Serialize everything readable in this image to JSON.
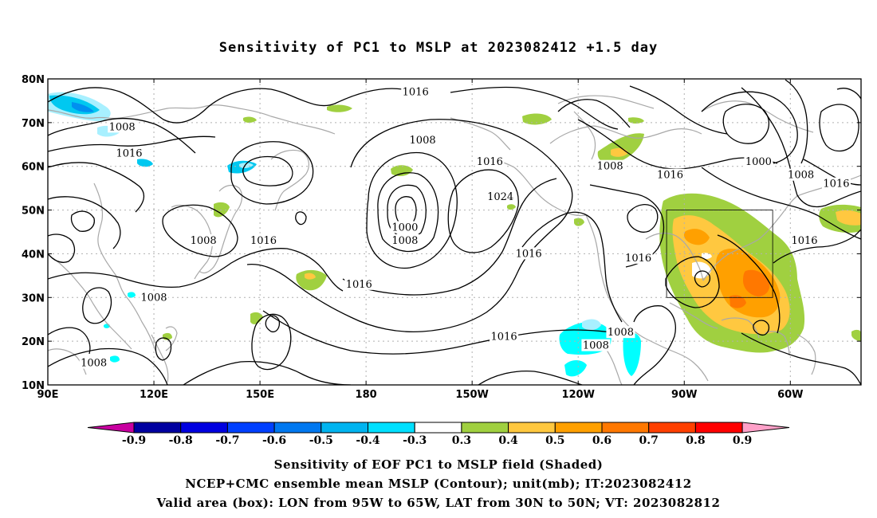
{
  "title": "Sensitivity of PC1 to MSLP at 2023082412 +1.5 day",
  "captions": {
    "line1": "Sensitivity of EOF PC1 to MSLP field (Shaded)",
    "line2": "NCEP+CMC ensemble mean MSLP (Contour); unit(mb); IT:2023082412",
    "line3": "Valid area (box): LON from 95W to 65W, LAT from 30N to 50N; VT: 2023082812"
  },
  "map": {
    "lon_range": [
      90,
      320
    ],
    "lat_range": [
      10,
      80
    ],
    "lat_ticks": [
      {
        "value": 80,
        "label": "80N"
      },
      {
        "value": 70,
        "label": "70N"
      },
      {
        "value": 60,
        "label": "60N"
      },
      {
        "value": 50,
        "label": "50N"
      },
      {
        "value": 40,
        "label": "40N"
      },
      {
        "value": 30,
        "label": "30N"
      },
      {
        "value": 20,
        "label": "20N"
      },
      {
        "value": 10,
        "label": "10N"
      }
    ],
    "lon_ticks": [
      {
        "value": 90,
        "label": "90E"
      },
      {
        "value": 120,
        "label": "120E"
      },
      {
        "value": 150,
        "label": "150E"
      },
      {
        "value": 180,
        "label": "180"
      },
      {
        "value": 210,
        "label": "150W"
      },
      {
        "value": 240,
        "label": "120W"
      },
      {
        "value": 270,
        "label": "90W"
      },
      {
        "value": 300,
        "label": "60W"
      }
    ],
    "valid_box": {
      "lon_west": 265,
      "lon_east": 295,
      "lat_south": 30,
      "lat_north": 50
    },
    "contour_labels": [
      {
        "text": "1016",
        "lon": 194,
        "lat": 77
      },
      {
        "text": "1008",
        "lon": 111,
        "lat": 69
      },
      {
        "text": "1016",
        "lon": 113,
        "lat": 63
      },
      {
        "text": "1008",
        "lon": 196,
        "lat": 66
      },
      {
        "text": "1016",
        "lon": 215,
        "lat": 61
      },
      {
        "text": "1008",
        "lon": 249,
        "lat": 60
      },
      {
        "text": "1016",
        "lon": 266,
        "lat": 58
      },
      {
        "text": "1000",
        "lon": 291,
        "lat": 61
      },
      {
        "text": "1008",
        "lon": 303,
        "lat": 58
      },
      {
        "text": "1016",
        "lon": 313,
        "lat": 56
      },
      {
        "text": "1024",
        "lon": 218,
        "lat": 53
      },
      {
        "text": "1000",
        "lon": 191,
        "lat": 46
      },
      {
        "text": "1008",
        "lon": 191,
        "lat": 43
      },
      {
        "text": "1008",
        "lon": 134,
        "lat": 43
      },
      {
        "text": "1016",
        "lon": 151,
        "lat": 43
      },
      {
        "text": "1016",
        "lon": 226,
        "lat": 40
      },
      {
        "text": "1016",
        "lon": 257,
        "lat": 39
      },
      {
        "text": "1016",
        "lon": 304,
        "lat": 43
      },
      {
        "text": "1016",
        "lon": 178,
        "lat": 33
      },
      {
        "text": "1008",
        "lon": 120,
        "lat": 30
      },
      {
        "text": "1016",
        "lon": 219,
        "lat": 21
      },
      {
        "text": "1008",
        "lon": 252,
        "lat": 22
      },
      {
        "text": "1008",
        "lon": 245,
        "lat": 19
      },
      {
        "text": "1008",
        "lon": 103,
        "lat": 15
      }
    ],
    "shading_colors": {
      "light_cyan": "#a8f0ff",
      "cyan": "#00ffff",
      "sky": "#00c8f0",
      "blue": "#0090f0",
      "green": "#a0d040",
      "yellow": "#ffc840",
      "orange": "#ffa000",
      "dark_orange": "#ff7800"
    }
  },
  "colorbar": {
    "labels": [
      "-0.9",
      "-0.8",
      "-0.7",
      "-0.6",
      "-0.5",
      "-0.4",
      "-0.3",
      "0.3",
      "0.4",
      "0.5",
      "0.6",
      "0.7",
      "0.8",
      "0.9"
    ],
    "left_arrow_color": "#c800a0",
    "right_arrow_color": "#ffa0c8",
    "segments": [
      "#0000a0",
      "#0000e0",
      "#0040ff",
      "#0078f0",
      "#00b4f0",
      "#00e0ff",
      "#ffffff",
      "#a0d040",
      "#ffc840",
      "#ffa000",
      "#ff7800",
      "#ff4000",
      "#ff0000"
    ]
  }
}
